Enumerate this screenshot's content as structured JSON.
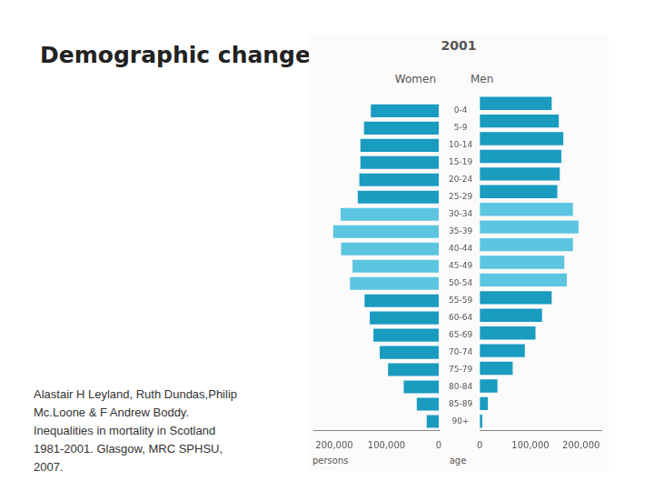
{
  "slide": {
    "title": "Demographic change",
    "source_lines": [
      "Alastair H Leyland, Ruth Dundas,Philip",
      "Mc.Loone & F Andrew Boddy.",
      "Inequalities in mortality in Scotland",
      "1981-2001. Glasgow, MRC SPHSU,",
      "2007."
    ]
  },
  "chart_data": {
    "type": "bar",
    "orientation": "horizontal",
    "title": "2001",
    "xlabel": "persons",
    "ylabel": "age",
    "categories": [
      "0-4",
      "5-9",
      "10-14",
      "15-19",
      "20-24",
      "25-29",
      "30-34",
      "35-39",
      "40-44",
      "45-49",
      "50-54",
      "55-59",
      "60-64",
      "65-69",
      "70-74",
      "75-79",
      "80-84",
      "85-89",
      "90+"
    ],
    "series": [
      {
        "name": "Women",
        "values": [
          130000,
          143000,
          150000,
          150000,
          152000,
          155000,
          188000,
          202000,
          187000,
          165000,
          170000,
          142000,
          132000,
          125000,
          113000,
          97000,
          67000,
          42000,
          23000
        ],
        "colors": [
          "#1a9bc0",
          "#1a9bc0",
          "#1a9bc0",
          "#1a9bc0",
          "#1a9bc0",
          "#1a9bc0",
          "#5cc5df",
          "#5cc5df",
          "#5cc5df",
          "#5cc5df",
          "#5cc5df",
          "#1a9bc0",
          "#1a9bc0",
          "#1a9bc0",
          "#1a9bc0",
          "#1a9bc0",
          "#1a9bc0",
          "#1a9bc0",
          "#1a9bc0"
        ]
      },
      {
        "name": "Men",
        "values": [
          142000,
          156000,
          165000,
          161000,
          158000,
          153000,
          184000,
          195000,
          184000,
          167000,
          172000,
          142000,
          123000,
          110000,
          89000,
          65000,
          35000,
          16000,
          5000
        ],
        "colors": [
          "#1a9bc0",
          "#1a9bc0",
          "#1a9bc0",
          "#1a9bc0",
          "#1a9bc0",
          "#1a9bc0",
          "#5cc5df",
          "#5cc5df",
          "#5cc5df",
          "#5cc5df",
          "#5cc5df",
          "#1a9bc0",
          "#1a9bc0",
          "#1a9bc0",
          "#1a9bc0",
          "#1a9bc0",
          "#1a9bc0",
          "#1a9bc0",
          "#1a9bc0"
        ]
      }
    ],
    "xlim": [
      0,
      240000
    ],
    "xticks": [
      0,
      {
        "value": 100000,
        "label": "100,000"
      },
      {
        "value": 200000,
        "label": "200,000"
      }
    ],
    "grid": false
  }
}
